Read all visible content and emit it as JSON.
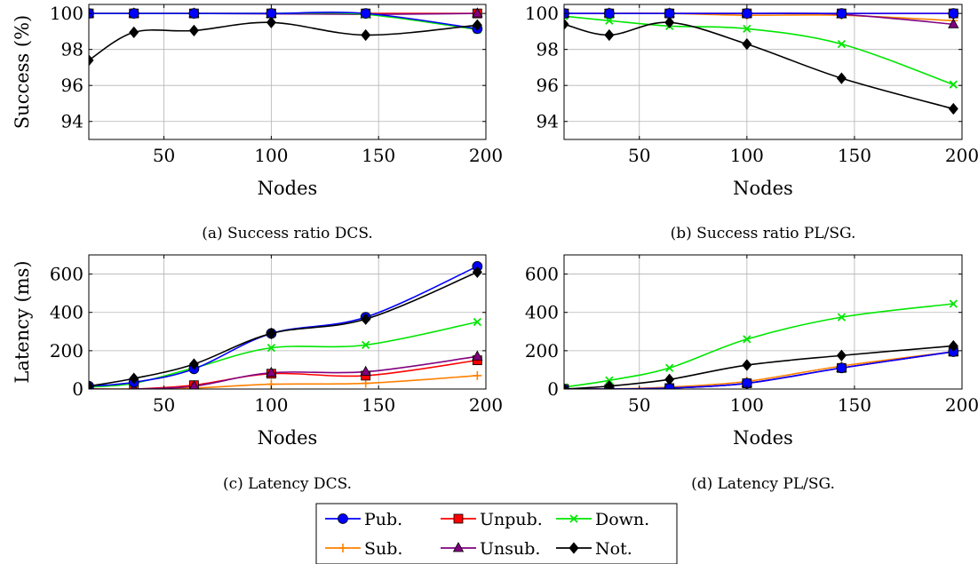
{
  "chart_data": [
    {
      "type": "line",
      "caption": "(a) Success ratio DCS.",
      "xlabel": "Nodes",
      "ylabel": "Success (%)",
      "xlim": [
        15,
        200
      ],
      "ylim": [
        93,
        100.5
      ],
      "xticks": [
        50,
        100,
        150,
        200
      ],
      "yticks": [
        94,
        96,
        98,
        100
      ],
      "grid": true,
      "x": [
        15,
        36,
        64,
        100,
        144,
        196
      ],
      "series": [
        {
          "name": "Pub.",
          "values": [
            100,
            100,
            100,
            100,
            100,
            99.15
          ]
        },
        {
          "name": "Unpub.",
          "values": [
            100,
            100,
            100,
            100,
            100,
            100
          ]
        },
        {
          "name": "Down.",
          "values": [
            100,
            100,
            100,
            100,
            99.95,
            99.1
          ]
        },
        {
          "name": "Sub.",
          "values": [
            100,
            100,
            100,
            100,
            100,
            100
          ]
        },
        {
          "name": "Unsub.",
          "values": [
            100,
            100,
            100,
            99.98,
            99.95,
            100
          ]
        },
        {
          "name": "Not.",
          "values": [
            97.4,
            98.95,
            99.05,
            99.5,
            98.8,
            99.35
          ]
        }
      ]
    },
    {
      "type": "line",
      "caption": "(b) Success ratio PL/SG.",
      "xlabel": "Nodes",
      "ylabel": "",
      "xlim": [
        15,
        200
      ],
      "ylim": [
        93,
        100.5
      ],
      "xticks": [
        50,
        100,
        150,
        200
      ],
      "yticks": [
        94,
        96,
        98,
        100
      ],
      "grid": true,
      "x": [
        15,
        36,
        64,
        100,
        144,
        196
      ],
      "series": [
        {
          "name": "Pub.",
          "values": [
            100,
            100,
            100,
            100,
            100,
            100
          ]
        },
        {
          "name": "Unpub.",
          "values": [
            100,
            100,
            100,
            100,
            100,
            100
          ]
        },
        {
          "name": "Down.",
          "values": [
            99.85,
            99.6,
            99.3,
            99.15,
            98.3,
            96.05
          ]
        },
        {
          "name": "Sub.",
          "values": [
            100,
            100,
            100,
            99.9,
            99.9,
            99.6
          ]
        },
        {
          "name": "Unsub.",
          "values": [
            100,
            100,
            100,
            100,
            99.95,
            99.4
          ]
        },
        {
          "name": "Not.",
          "values": [
            99.4,
            98.8,
            99.5,
            98.3,
            96.4,
            94.7
          ]
        }
      ]
    },
    {
      "type": "line",
      "caption": "(c) Latency DCS.",
      "xlabel": "Nodes",
      "ylabel": "Latency (ms)",
      "xlim": [
        15,
        200
      ],
      "ylim": [
        0,
        700
      ],
      "xticks": [
        50,
        100,
        150,
        200
      ],
      "yticks": [
        0,
        200,
        400,
        600
      ],
      "grid": true,
      "x": [
        15,
        36,
        64,
        100,
        144,
        196
      ],
      "series": [
        {
          "name": "Pub.",
          "values": [
            15,
            35,
            105,
            290,
            375,
            640
          ]
        },
        {
          "name": "Unpub.",
          "values": [
            0,
            0,
            20,
            80,
            70,
            150
          ]
        },
        {
          "name": "Down.",
          "values": [
            10,
            30,
            110,
            215,
            230,
            350
          ]
        },
        {
          "name": "Sub.",
          "values": [
            0,
            0,
            5,
            25,
            30,
            70
          ]
        },
        {
          "name": "Unsub.",
          "values": [
            0,
            0,
            15,
            85,
            90,
            170
          ]
        },
        {
          "name": "Not.",
          "values": [
            15,
            55,
            130,
            290,
            365,
            610
          ]
        }
      ]
    },
    {
      "type": "line",
      "caption": "(d) Latency PL/SG.",
      "xlabel": "Nodes",
      "ylabel": "",
      "xlim": [
        15,
        200
      ],
      "ylim": [
        0,
        700
      ],
      "xticks": [
        50,
        100,
        150,
        200
      ],
      "yticks": [
        0,
        200,
        400,
        600
      ],
      "grid": true,
      "x": [
        15,
        36,
        64,
        100,
        144,
        196
      ],
      "series": [
        {
          "name": "Pub.",
          "values": [
            0,
            0,
            5,
            30,
            110,
            195
          ]
        },
        {
          "name": "Unpub.",
          "values": [
            0,
            0,
            5,
            30,
            110,
            195
          ]
        },
        {
          "name": "Down.",
          "values": [
            10,
            45,
            110,
            260,
            375,
            445
          ]
        },
        {
          "name": "Sub.",
          "values": [
            0,
            0,
            10,
            40,
            120,
            195
          ]
        },
        {
          "name": "Unsub.",
          "values": [
            0,
            0,
            5,
            30,
            110,
            195
          ]
        },
        {
          "name": "Not.",
          "values": [
            0,
            15,
            50,
            125,
            175,
            225
          ]
        }
      ]
    }
  ],
  "styles": {
    "Pub.": {
      "color": "#0000ff",
      "marker": "circle"
    },
    "Unpub.": {
      "color": "#ff0000",
      "marker": "square"
    },
    "Down.": {
      "color": "#00e600",
      "marker": "cross"
    },
    "Sub.": {
      "color": "#ff8000",
      "marker": "plus"
    },
    "Unsub.": {
      "color": "#800080",
      "marker": "triangle"
    },
    "Not.": {
      "color": "#000000",
      "marker": "diamond"
    }
  },
  "legend": {
    "entries": [
      "Pub.",
      "Unpub.",
      "Down.",
      "Sub.",
      "Unsub.",
      "Not."
    ],
    "placement": "bottom-center"
  }
}
